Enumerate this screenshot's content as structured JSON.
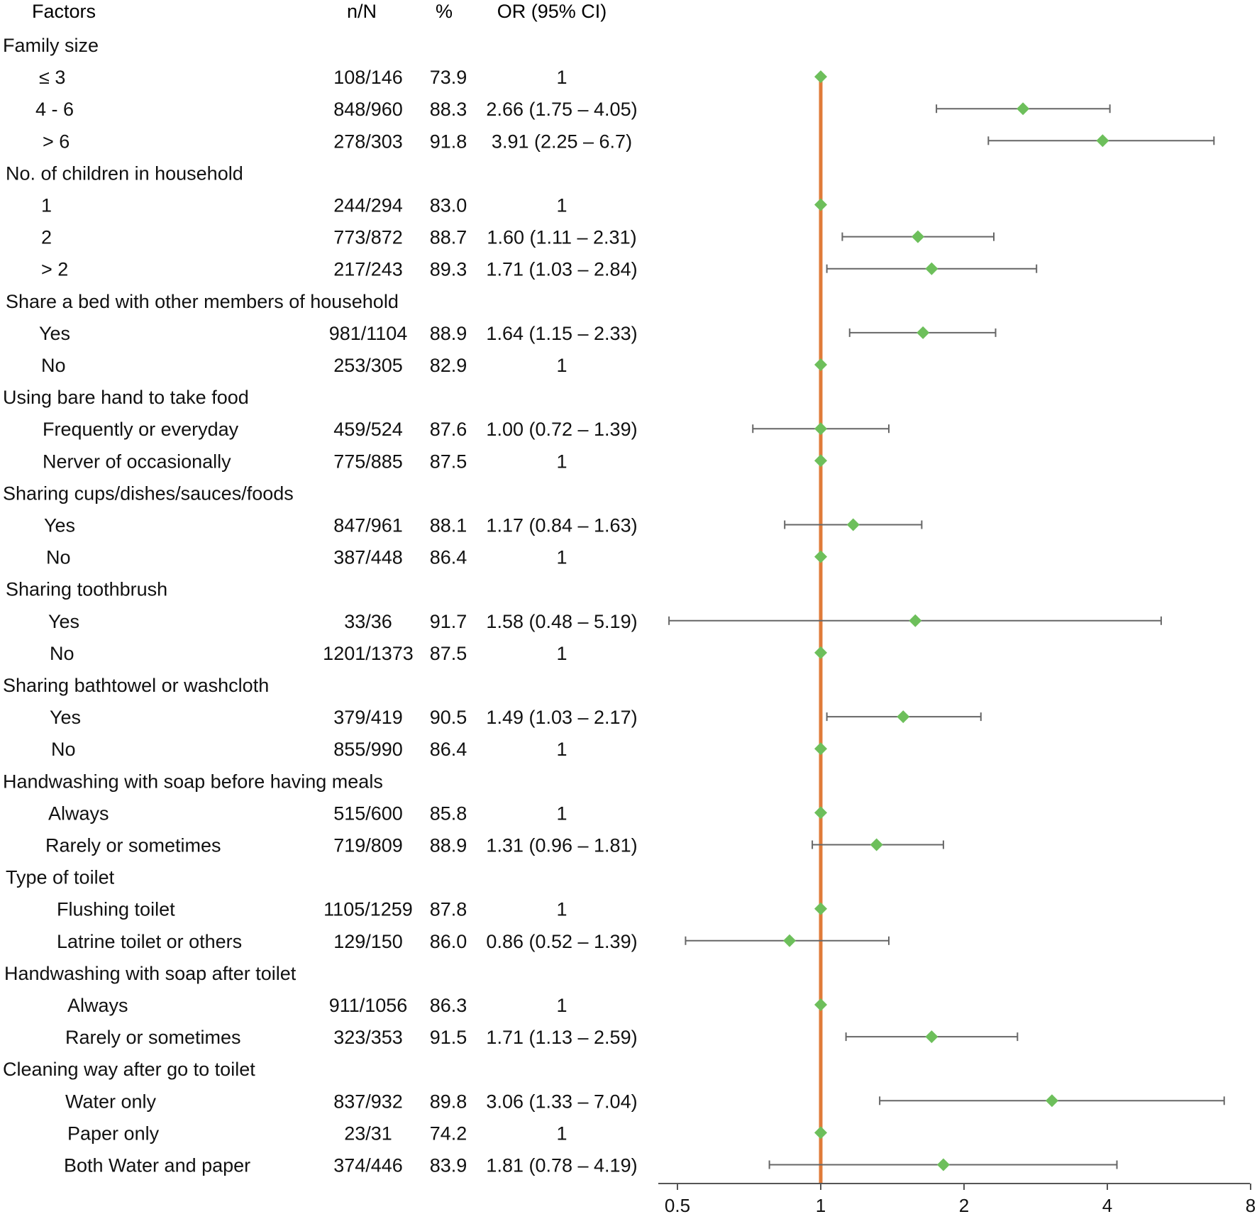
{
  "chart_data": {
    "type": "forest",
    "headers": {
      "factor": "Factors",
      "n": "n/N",
      "pct": "%",
      "or": "OR (95% CI)"
    },
    "x_axis": {
      "scale": "log2",
      "range": [
        0.5,
        8
      ],
      "ticks": [
        {
          "value": 0.5,
          "label": "0.5"
        },
        {
          "value": 1,
          "label": "1"
        },
        {
          "value": 2,
          "label": "2"
        },
        {
          "value": 4,
          "label": "4"
        },
        {
          "value": 8,
          "label": "8"
        }
      ],
      "reference_value": 1
    },
    "colors": {
      "reference_line": "#E07B39",
      "marker": "#6DBF5B",
      "whisker": "#666666",
      "text": "#111111"
    },
    "rows": [
      {
        "type": "group",
        "label": "Family size"
      },
      {
        "type": "item",
        "label": "≤ 3",
        "n": "108/146",
        "pct": "73.9",
        "or_text": "1",
        "or": 1
      },
      {
        "type": "item",
        "label": "4 - 6",
        "n": "848/960",
        "pct": "88.3",
        "or_text": "2.66 (1.75 – 4.05)",
        "or": 2.66,
        "lo": 1.75,
        "hi": 4.05
      },
      {
        "type": "item",
        "label": "> 6",
        "n": "278/303",
        "pct": "91.8",
        "or_text": "3.91 (2.25 – 6.7)",
        "or": 3.91,
        "lo": 2.25,
        "hi": 6.7
      },
      {
        "type": "group",
        "label": "No. of children in household"
      },
      {
        "type": "item",
        "label": "1",
        "n": "244/294",
        "pct": "83.0",
        "or_text": "1",
        "or": 1
      },
      {
        "type": "item",
        "label": "2",
        "n": "773/872",
        "pct": "88.7",
        "or_text": "1.60 (1.11 – 2.31)",
        "or": 1.6,
        "lo": 1.11,
        "hi": 2.31
      },
      {
        "type": "item",
        "label": "> 2",
        "n": "217/243",
        "pct": "89.3",
        "or_text": "1.71 (1.03 – 2.84)",
        "or": 1.71,
        "lo": 1.03,
        "hi": 2.84
      },
      {
        "type": "group",
        "label": "Share a bed with other members of household"
      },
      {
        "type": "item",
        "label": "Yes",
        "n": "981/1104",
        "pct": "88.9",
        "or_text": "1.64 (1.15 – 2.33)",
        "or": 1.64,
        "lo": 1.15,
        "hi": 2.33
      },
      {
        "type": "item",
        "label": "No",
        "n": "253/305",
        "pct": "82.9",
        "or_text": "1",
        "or": 1
      },
      {
        "type": "group",
        "label": "Using bare hand to take food"
      },
      {
        "type": "item",
        "label": "Frequently or everyday",
        "n": "459/524",
        "pct": "87.6",
        "or_text": "1.00 (0.72 – 1.39)",
        "or": 1.0,
        "lo": 0.72,
        "hi": 1.39
      },
      {
        "type": "item",
        "label": "Nerver of occasionally",
        "n": "775/885",
        "pct": "87.5",
        "or_text": "1",
        "or": 1
      },
      {
        "type": "group",
        "label": "Sharing cups/dishes/sauces/foods"
      },
      {
        "type": "item",
        "label": "Yes",
        "n": "847/961",
        "pct": "88.1",
        "or_text": "1.17 (0.84 – 1.63)",
        "or": 1.17,
        "lo": 0.84,
        "hi": 1.63
      },
      {
        "type": "item",
        "label": "No",
        "n": "387/448",
        "pct": "86.4",
        "or_text": "1",
        "or": 1
      },
      {
        "type": "group",
        "label": "Sharing toothbrush"
      },
      {
        "type": "item",
        "label": "Yes",
        "n": "33/36",
        "pct": "91.7",
        "or_text": "1.58 (0.48 – 5.19)",
        "or": 1.58,
        "lo": 0.48,
        "hi": 5.19
      },
      {
        "type": "item",
        "label": "No",
        "n": "1201/1373",
        "pct": "87.5",
        "or_text": "1",
        "or": 1
      },
      {
        "type": "group",
        "label": "Sharing bathtowel or washcloth"
      },
      {
        "type": "item",
        "label": "Yes",
        "n": "379/419",
        "pct": "90.5",
        "or_text": "1.49 (1.03 – 2.17)",
        "or": 1.49,
        "lo": 1.03,
        "hi": 2.17
      },
      {
        "type": "item",
        "label": "No",
        "n": "855/990",
        "pct": "86.4",
        "or_text": "1",
        "or": 1
      },
      {
        "type": "group",
        "label": "Handwashing with soap before having meals"
      },
      {
        "type": "item",
        "label": "Always",
        "n": "515/600",
        "pct": "85.8",
        "or_text": "1",
        "or": 1
      },
      {
        "type": "item",
        "label": "Rarely or sometimes",
        "n": "719/809",
        "pct": "88.9",
        "or_text": "1.31 (0.96 – 1.81)",
        "or": 1.31,
        "lo": 0.96,
        "hi": 1.81
      },
      {
        "type": "group",
        "label": "Type of toilet"
      },
      {
        "type": "item",
        "label": "Flushing toilet",
        "n": "1105/1259",
        "pct": "87.8",
        "or_text": "1",
        "or": 1
      },
      {
        "type": "item",
        "label": "Latrine toilet or others",
        "n": "129/150",
        "pct": "86.0",
        "or_text": "0.86 (0.52 – 1.39)",
        "or": 0.86,
        "lo": 0.52,
        "hi": 1.39
      },
      {
        "type": "group",
        "label": "Handwashing with soap after toilet"
      },
      {
        "type": "item",
        "label": "Always",
        "n": "911/1056",
        "pct": "86.3",
        "or_text": "1",
        "or": 1
      },
      {
        "type": "item",
        "label": "Rarely or sometimes",
        "n": "323/353",
        "pct": "91.5",
        "or_text": "1.71 (1.13 – 2.59)",
        "or": 1.71,
        "lo": 1.13,
        "hi": 2.59
      },
      {
        "type": "group",
        "label": "Cleaning way after go to toilet"
      },
      {
        "type": "item",
        "label": "Water only",
        "n": "837/932",
        "pct": "89.8",
        "or_text": "3.06 (1.33 – 7.04)",
        "or": 3.06,
        "lo": 1.33,
        "hi": 7.04
      },
      {
        "type": "item",
        "label": "Paper only",
        "n": "23/31",
        "pct": "74.2",
        "or_text": "1",
        "or": 1
      },
      {
        "type": "item",
        "label": "Both Water and paper",
        "n": "374/446",
        "pct": "83.9",
        "or_text": "1.81 (0.78 – 4.19)",
        "or": 1.81,
        "lo": 0.78,
        "hi": 4.19
      }
    ]
  }
}
